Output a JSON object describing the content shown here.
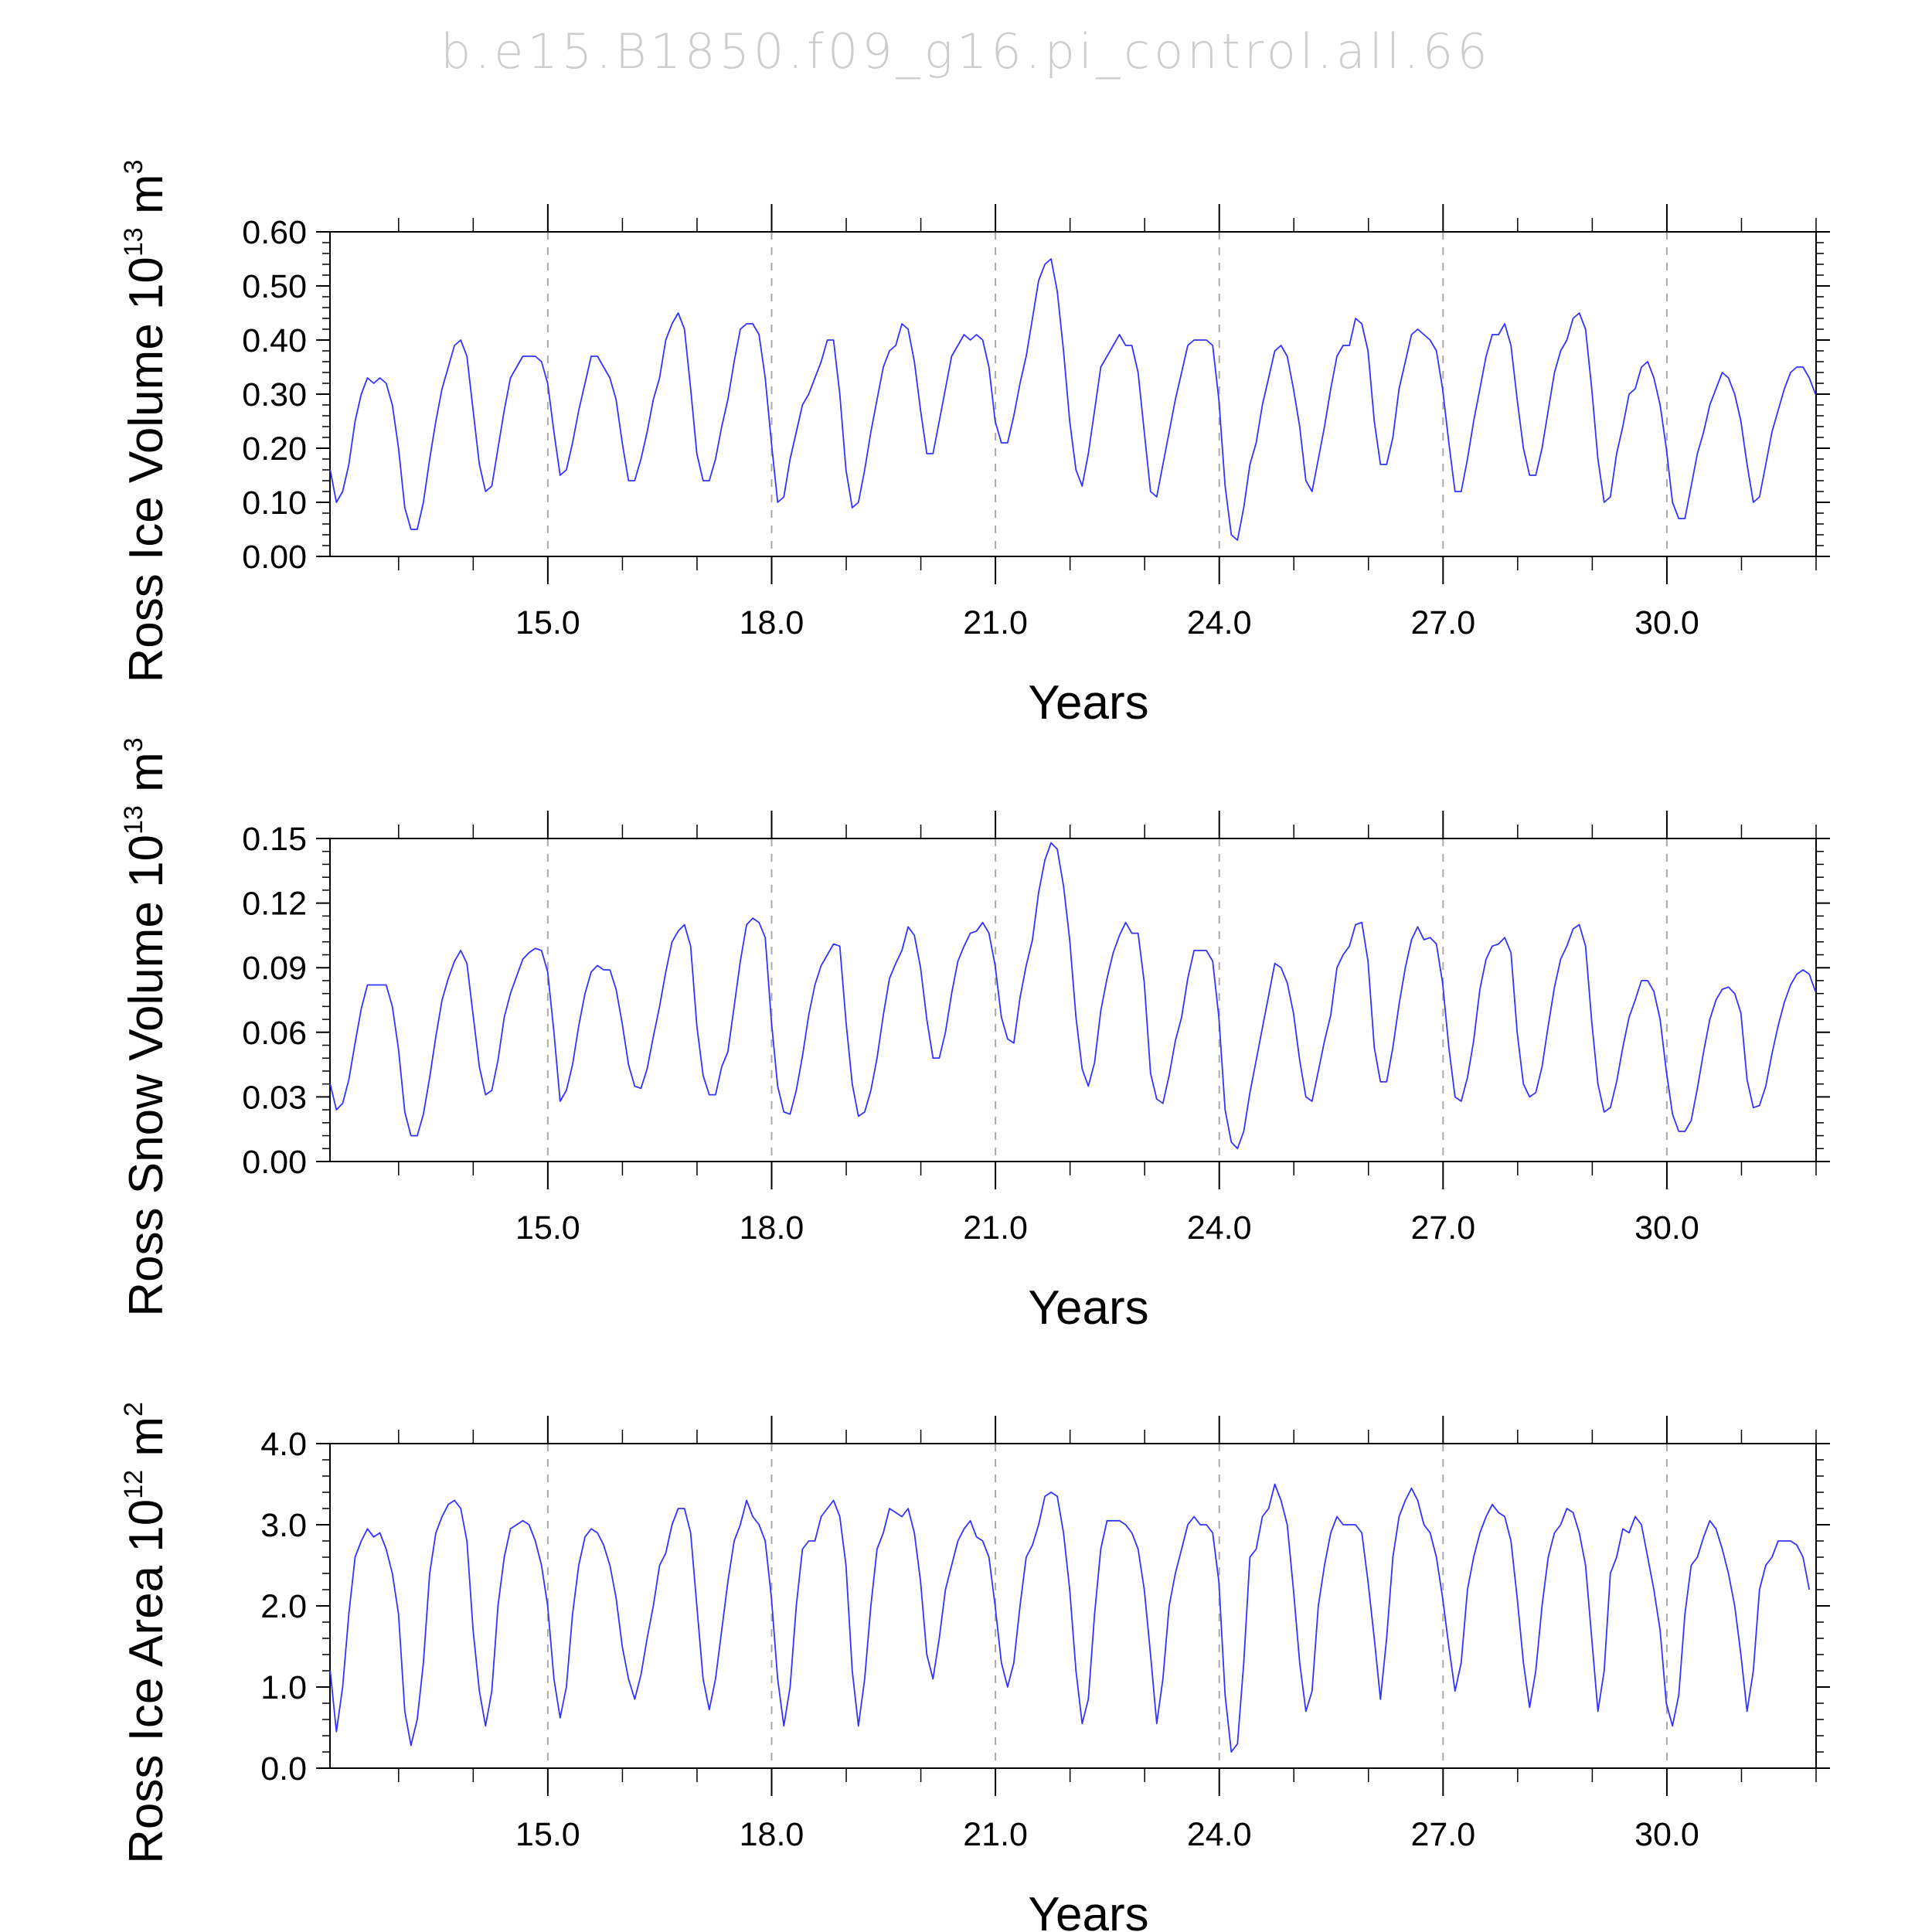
{
  "title": "b.e15.B1850.f09_g16.pi_control.all.66",
  "colors": {
    "line": "#3333ff",
    "axes": "#000000",
    "grid": "#aaaaaa",
    "title": "#cdcdcd"
  },
  "chart_data": [
    {
      "type": "line",
      "ylabel": {
        "main": "Ross Ice Volume 10",
        "sup": "13",
        "unit": " m",
        "unit_sup": "3"
      },
      "xlabel": "Years",
      "xlim": [
        12.08,
        32.0
      ],
      "ylim": [
        0,
        0.6
      ],
      "xticks": [
        15.0,
        18.0,
        21.0,
        24.0,
        27.0,
        30.0
      ],
      "xtick_labels": [
        "15.0",
        "18.0",
        "21.0",
        "24.0",
        "27.0",
        "30.0"
      ],
      "yticks": [
        0,
        0.1,
        0.2,
        0.3,
        0.4,
        0.5,
        0.6
      ],
      "ytick_labels": [
        "0.00",
        "0.10",
        "0.20",
        "0.30",
        "0.40",
        "0.50",
        "0.60"
      ],
      "vertical_dashed_gridlines_at": [
        15.0,
        18.0,
        21.0,
        24.0,
        27.0,
        30.0
      ],
      "series": [
        {
          "x_start": 12.083,
          "x_step": 0.0833,
          "values": [
            0.16,
            0.1,
            0.12,
            0.17,
            0.25,
            0.3,
            0.33,
            0.32,
            0.33,
            0.32,
            0.28,
            0.2,
            0.09,
            0.05,
            0.05,
            0.1,
            0.18,
            0.25,
            0.31,
            0.35,
            0.39,
            0.4,
            0.37,
            0.27,
            0.17,
            0.12,
            0.13,
            0.2,
            0.27,
            0.33,
            0.35,
            0.37,
            0.37,
            0.37,
            0.36,
            0.32,
            0.23,
            0.15,
            0.16,
            0.21,
            0.27,
            0.32,
            0.37,
            0.37,
            0.35,
            0.33,
            0.29,
            0.21,
            0.14,
            0.14,
            0.18,
            0.23,
            0.29,
            0.33,
            0.4,
            0.43,
            0.45,
            0.42,
            0.31,
            0.19,
            0.14,
            0.14,
            0.18,
            0.24,
            0.29,
            0.36,
            0.42,
            0.43,
            0.43,
            0.41,
            0.33,
            0.21,
            0.1,
            0.11,
            0.18,
            0.23,
            0.28,
            0.3,
            0.33,
            0.36,
            0.4,
            0.4,
            0.3,
            0.16,
            0.09,
            0.1,
            0.16,
            0.23,
            0.29,
            0.35,
            0.38,
            0.39,
            0.43,
            0.42,
            0.36,
            0.27,
            0.19,
            0.19,
            0.25,
            0.31,
            0.37,
            0.39,
            0.41,
            0.4,
            0.41,
            0.4,
            0.35,
            0.25,
            0.21,
            0.21,
            0.26,
            0.32,
            0.37,
            0.44,
            0.51,
            0.54,
            0.55,
            0.49,
            0.38,
            0.25,
            0.16,
            0.13,
            0.19,
            0.27,
            0.35,
            0.37,
            0.39,
            0.41,
            0.39,
            0.39,
            0.34,
            0.23,
            0.12,
            0.11,
            0.17,
            0.23,
            0.29,
            0.34,
            0.39,
            0.4,
            0.4,
            0.4,
            0.39,
            0.29,
            0.13,
            0.04,
            0.03,
            0.09,
            0.17,
            0.21,
            0.28,
            0.33,
            0.38,
            0.39,
            0.37,
            0.31,
            0.24,
            0.14,
            0.12,
            0.18,
            0.24,
            0.31,
            0.37,
            0.39,
            0.39,
            0.44,
            0.43,
            0.38,
            0.25,
            0.17,
            0.17,
            0.22,
            0.31,
            0.36,
            0.41,
            0.42,
            0.41,
            0.4,
            0.38,
            0.31,
            0.21,
            0.12,
            0.12,
            0.18,
            0.25,
            0.31,
            0.37,
            0.41,
            0.41,
            0.43,
            0.39,
            0.29,
            0.2,
            0.15,
            0.15,
            0.2,
            0.27,
            0.34,
            0.38,
            0.4,
            0.44,
            0.45,
            0.42,
            0.31,
            0.18,
            0.1,
            0.11,
            0.19,
            0.24,
            0.3,
            0.31,
            0.35,
            0.36,
            0.33,
            0.28,
            0.2,
            0.1,
            0.07,
            0.07,
            0.13,
            0.19,
            0.23,
            0.28,
            0.31,
            0.34,
            0.33,
            0.3,
            0.25,
            0.17,
            0.1,
            0.11,
            0.17,
            0.23,
            0.27,
            0.31,
            0.34,
            0.35,
            0.35,
            0.33,
            0.3
          ]
        }
      ]
    },
    {
      "type": "line",
      "ylabel": {
        "main": "Ross Snow Volume 10",
        "sup": "13",
        "unit": " m",
        "unit_sup": "3"
      },
      "xlabel": "Years",
      "xlim": [
        12.08,
        32.0
      ],
      "ylim": [
        0,
        0.15
      ],
      "xticks": [
        15.0,
        18.0,
        21.0,
        24.0,
        27.0,
        30.0
      ],
      "xtick_labels": [
        "15.0",
        "18.0",
        "21.0",
        "24.0",
        "27.0",
        "30.0"
      ],
      "yticks": [
        0,
        0.03,
        0.06,
        0.09,
        0.12,
        0.15
      ],
      "ytick_labels": [
        "0.00",
        "0.03",
        "0.06",
        "0.09",
        "0.12",
        "0.15"
      ],
      "vertical_dashed_gridlines_at": [
        15.0,
        18.0,
        21.0,
        24.0,
        27.0,
        30.0
      ],
      "series": [
        {
          "x_start": 12.083,
          "x_step": 0.0833,
          "values": [
            0.036,
            0.024,
            0.027,
            0.038,
            0.055,
            0.071,
            0.082,
            0.082,
            0.082,
            0.082,
            0.072,
            0.052,
            0.023,
            0.012,
            0.012,
            0.022,
            0.039,
            0.058,
            0.075,
            0.085,
            0.093,
            0.098,
            0.092,
            0.068,
            0.044,
            0.031,
            0.033,
            0.047,
            0.067,
            0.078,
            0.086,
            0.094,
            0.097,
            0.099,
            0.098,
            0.088,
            0.06,
            0.028,
            0.033,
            0.045,
            0.063,
            0.078,
            0.088,
            0.091,
            0.089,
            0.089,
            0.08,
            0.064,
            0.045,
            0.035,
            0.034,
            0.043,
            0.058,
            0.072,
            0.088,
            0.102,
            0.107,
            0.11,
            0.1,
            0.063,
            0.04,
            0.031,
            0.031,
            0.044,
            0.051,
            0.072,
            0.093,
            0.11,
            0.113,
            0.111,
            0.104,
            0.065,
            0.035,
            0.023,
            0.022,
            0.033,
            0.049,
            0.068,
            0.082,
            0.091,
            0.096,
            0.101,
            0.1,
            0.065,
            0.036,
            0.021,
            0.023,
            0.033,
            0.048,
            0.068,
            0.085,
            0.092,
            0.098,
            0.109,
            0.105,
            0.09,
            0.066,
            0.048,
            0.048,
            0.06,
            0.078,
            0.093,
            0.1,
            0.106,
            0.107,
            0.111,
            0.106,
            0.091,
            0.067,
            0.057,
            0.055,
            0.076,
            0.091,
            0.103,
            0.125,
            0.14,
            0.148,
            0.145,
            0.128,
            0.103,
            0.067,
            0.043,
            0.035,
            0.046,
            0.07,
            0.085,
            0.097,
            0.105,
            0.111,
            0.106,
            0.106,
            0.083,
            0.041,
            0.029,
            0.027,
            0.04,
            0.056,
            0.067,
            0.085,
            0.098,
            0.098,
            0.098,
            0.093,
            0.067,
            0.024,
            0.009,
            0.006,
            0.014,
            0.032,
            0.047,
            0.062,
            0.077,
            0.092,
            0.09,
            0.083,
            0.069,
            0.047,
            0.03,
            0.028,
            0.042,
            0.056,
            0.068,
            0.09,
            0.096,
            0.1,
            0.11,
            0.111,
            0.093,
            0.053,
            0.037,
            0.037,
            0.053,
            0.073,
            0.09,
            0.103,
            0.109,
            0.103,
            0.104,
            0.101,
            0.083,
            0.053,
            0.03,
            0.028,
            0.039,
            0.056,
            0.08,
            0.094,
            0.1,
            0.101,
            0.104,
            0.097,
            0.06,
            0.036,
            0.03,
            0.032,
            0.044,
            0.063,
            0.081,
            0.094,
            0.1,
            0.108,
            0.11,
            0.1,
            0.065,
            0.036,
            0.023,
            0.025,
            0.037,
            0.053,
            0.067,
            0.075,
            0.084,
            0.084,
            0.079,
            0.066,
            0.042,
            0.022,
            0.014,
            0.014,
            0.019,
            0.034,
            0.051,
            0.066,
            0.075,
            0.08,
            0.081,
            0.078,
            0.069,
            0.038,
            0.025,
            0.026,
            0.035,
            0.05,
            0.063,
            0.074,
            0.082,
            0.087,
            0.089,
            0.087,
            0.079
          ]
        }
      ]
    },
    {
      "type": "line",
      "ylabel": {
        "main": "Ross Ice Area 10",
        "sup": "12",
        "unit": " m",
        "unit_sup": "2"
      },
      "xlabel": "Years",
      "xlim": [
        12.08,
        32.0
      ],
      "ylim": [
        0,
        4.0
      ],
      "xticks": [
        15.0,
        18.0,
        21.0,
        24.0,
        27.0,
        30.0
      ],
      "xtick_labels": [
        "15.0",
        "18.0",
        "21.0",
        "24.0",
        "27.0",
        "30.0"
      ],
      "yticks": [
        0,
        1.0,
        2.0,
        3.0,
        4.0
      ],
      "ytick_labels": [
        "0.0",
        "1.0",
        "2.0",
        "3.0",
        "4.0"
      ],
      "vertical_dashed_gridlines_at": [
        15.0,
        18.0,
        21.0,
        24.0,
        27.0,
        30.0
      ],
      "series": [
        {
          "x_start": 12.083,
          "x_step": 0.0833,
          "values": [
            1.2,
            0.45,
            1.0,
            1.9,
            2.6,
            2.8,
            2.95,
            2.85,
            2.9,
            2.7,
            2.4,
            1.9,
            0.7,
            0.28,
            0.6,
            1.3,
            2.4,
            2.9,
            3.1,
            3.25,
            3.3,
            3.2,
            2.8,
            1.7,
            0.95,
            0.52,
            0.95,
            2.0,
            2.6,
            2.95,
            3.0,
            3.05,
            3.0,
            2.8,
            2.5,
            2.0,
            1.1,
            0.62,
            1.0,
            1.9,
            2.5,
            2.85,
            2.95,
            2.9,
            2.75,
            2.5,
            2.1,
            1.5,
            1.1,
            0.85,
            1.15,
            1.6,
            2.0,
            2.5,
            2.65,
            3.0,
            3.2,
            3.2,
            2.9,
            2.0,
            1.1,
            0.72,
            1.1,
            1.7,
            2.3,
            2.8,
            3.0,
            3.3,
            3.1,
            3.0,
            2.8,
            2.1,
            1.1,
            0.52,
            1.0,
            2.0,
            2.7,
            2.8,
            2.8,
            3.1,
            3.2,
            3.3,
            3.1,
            2.5,
            1.2,
            0.52,
            1.1,
            2.0,
            2.7,
            2.9,
            3.2,
            3.15,
            3.1,
            3.2,
            2.9,
            2.3,
            1.4,
            1.1,
            1.6,
            2.2,
            2.5,
            2.8,
            2.95,
            3.05,
            2.85,
            2.8,
            2.6,
            2.0,
            1.3,
            1.0,
            1.3,
            2.0,
            2.6,
            2.75,
            3.0,
            3.35,
            3.4,
            3.35,
            2.9,
            2.2,
            1.2,
            0.55,
            0.85,
            1.9,
            2.7,
            3.05,
            3.05,
            3.05,
            3.0,
            2.9,
            2.7,
            2.2,
            1.4,
            0.55,
            1.1,
            2.0,
            2.4,
            2.7,
            3.0,
            3.1,
            3.0,
            3.0,
            2.9,
            2.3,
            0.9,
            0.2,
            0.3,
            1.3,
            2.6,
            2.7,
            3.1,
            3.2,
            3.5,
            3.3,
            3.0,
            2.2,
            1.3,
            0.7,
            0.95,
            2.0,
            2.5,
            2.9,
            3.1,
            3.0,
            3.0,
            3.0,
            2.9,
            2.3,
            1.6,
            0.85,
            1.6,
            2.6,
            3.1,
            3.3,
            3.45,
            3.3,
            3.0,
            2.9,
            2.6,
            2.1,
            1.5,
            0.95,
            1.3,
            2.2,
            2.6,
            2.9,
            3.1,
            3.25,
            3.15,
            3.1,
            2.8,
            2.1,
            1.3,
            0.75,
            1.2,
            2.0,
            2.6,
            2.9,
            3.0,
            3.2,
            3.15,
            2.9,
            2.5,
            1.6,
            0.7,
            1.2,
            2.4,
            2.6,
            2.95,
            2.9,
            3.1,
            3.0,
            2.6,
            2.2,
            1.7,
            0.8,
            0.52,
            0.9,
            1.9,
            2.5,
            2.6,
            2.85,
            3.05,
            2.95,
            2.7,
            2.4,
            2.0,
            1.4,
            0.7,
            1.2,
            2.2,
            2.5,
            2.6,
            2.8,
            2.8,
            2.8,
            2.75,
            2.6,
            2.2
          ]
        }
      ]
    }
  ]
}
